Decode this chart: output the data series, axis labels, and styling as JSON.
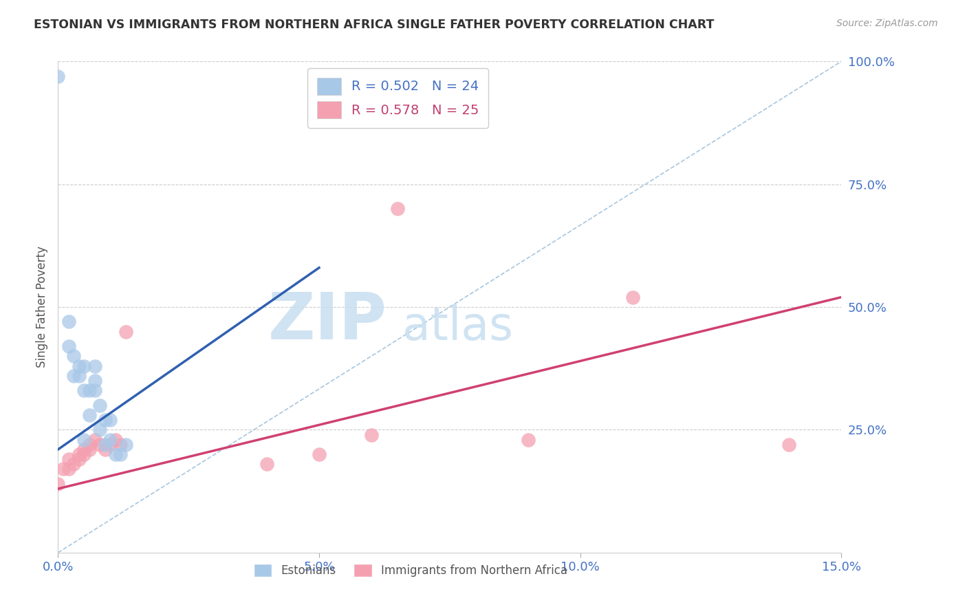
{
  "title": "ESTONIAN VS IMMIGRANTS FROM NORTHERN AFRICA SINGLE FATHER POVERTY CORRELATION CHART",
  "source": "Source: ZipAtlas.com",
  "ylabel": "Single Father Poverty",
  "xlim": [
    0.0,
    0.15
  ],
  "ylim": [
    0.0,
    1.0
  ],
  "yticks": [
    0.25,
    0.5,
    0.75,
    1.0
  ],
  "ytick_labels": [
    "25.0%",
    "50.0%",
    "75.0%",
    "100.0%"
  ],
  "xticks": [
    0.0,
    0.05,
    0.1,
    0.15
  ],
  "xtick_labels": [
    "0.0%",
    "5.0%",
    "10.0%",
    "15.0%"
  ],
  "legend1_text": "R = 0.502   N = 24",
  "legend2_text": "R = 0.578   N = 25",
  "legend_label1": "Estonians",
  "legend_label2": "Immigrants from Northern Africa",
  "color_blue": "#a8c8e8",
  "color_pink": "#f4a0b0",
  "color_blue_line": "#3060b0",
  "color_pink_line": "#d04070",
  "color_diag_line": "#90b8d8",
  "watermark_zip": "ZIP",
  "watermark_atlas": "atlas",
  "estonians_x": [
    0.002,
    0.002,
    0.003,
    0.003,
    0.004,
    0.004,
    0.005,
    0.005,
    0.006,
    0.006,
    0.007,
    0.007,
    0.007,
    0.008,
    0.008,
    0.009,
    0.009,
    0.01,
    0.01,
    0.011,
    0.012,
    0.013,
    0.005,
    0.0
  ],
  "estonians_y": [
    0.42,
    0.47,
    0.36,
    0.4,
    0.36,
    0.38,
    0.38,
    0.33,
    0.33,
    0.28,
    0.38,
    0.35,
    0.33,
    0.3,
    0.25,
    0.27,
    0.22,
    0.23,
    0.27,
    0.2,
    0.2,
    0.22,
    0.23,
    0.97
  ],
  "northern_africa_x": [
    0.0,
    0.001,
    0.002,
    0.002,
    0.003,
    0.004,
    0.004,
    0.005,
    0.005,
    0.006,
    0.006,
    0.007,
    0.008,
    0.009,
    0.01,
    0.011,
    0.012,
    0.013,
    0.04,
    0.05,
    0.06,
    0.065,
    0.09,
    0.11,
    0.14
  ],
  "northern_africa_y": [
    0.14,
    0.17,
    0.17,
    0.19,
    0.18,
    0.19,
    0.2,
    0.2,
    0.21,
    0.21,
    0.22,
    0.23,
    0.22,
    0.21,
    0.22,
    0.23,
    0.22,
    0.45,
    0.18,
    0.2,
    0.24,
    0.7,
    0.23,
    0.52,
    0.22
  ],
  "blue_line_x": [
    0.0,
    0.05
  ],
  "blue_line_y": [
    0.21,
    0.58
  ],
  "pink_line_x": [
    0.0,
    0.15
  ],
  "pink_line_y": [
    0.13,
    0.52
  ],
  "diag_line_x": [
    0.0,
    0.15
  ],
  "diag_line_y": [
    0.0,
    1.0
  ]
}
